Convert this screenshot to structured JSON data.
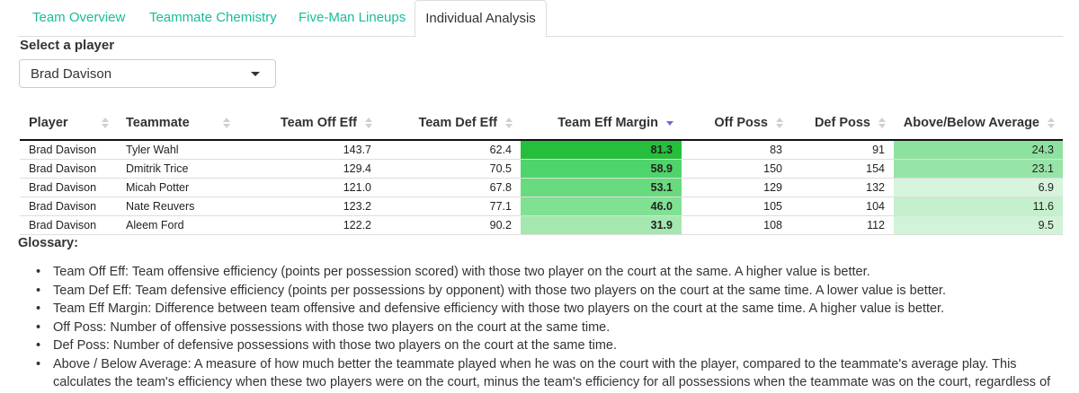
{
  "tabs": [
    {
      "label": "Team Overview",
      "active": false
    },
    {
      "label": "Teammate Chemistry",
      "active": false
    },
    {
      "label": "Five-Man Lineups",
      "active": false
    },
    {
      "label": "Individual Analysis",
      "active": true
    }
  ],
  "player_select": {
    "label": "Select a player",
    "value": "Brad Davison"
  },
  "table": {
    "columns": [
      "Player",
      "Teammate",
      "Team Off Eff",
      "Team Def Eff",
      "Team Eff Margin",
      "Off Poss",
      "Def Poss",
      "Above/Below Average"
    ],
    "sorted_by": "Team Eff Margin",
    "sort_direction": "descending",
    "rows": [
      {
        "player": "Brad Davison",
        "teammate": "Tyler Wahl",
        "off_eff": "143.7",
        "def_eff": "62.4",
        "margin": "81.3",
        "off_poss": "83",
        "def_poss": "91",
        "above_below": "24.3"
      },
      {
        "player": "Brad Davison",
        "teammate": "Dmitrik Trice",
        "off_eff": "129.4",
        "def_eff": "70.5",
        "margin": "58.9",
        "off_poss": "150",
        "def_poss": "154",
        "above_below": "23.1"
      },
      {
        "player": "Brad Davison",
        "teammate": "Micah Potter",
        "off_eff": "121.0",
        "def_eff": "67.8",
        "margin": "53.1",
        "off_poss": "129",
        "def_poss": "132",
        "above_below": "6.9"
      },
      {
        "player": "Brad Davison",
        "teammate": "Nate Reuvers",
        "off_eff": "123.2",
        "def_eff": "77.1",
        "margin": "46.0",
        "off_poss": "105",
        "def_poss": "104",
        "above_below": "11.6"
      },
      {
        "player": "Brad Davison",
        "teammate": "Aleem Ford",
        "off_eff": "122.2",
        "def_eff": "90.2",
        "margin": "31.9",
        "off_poss": "108",
        "def_poss": "112",
        "above_below": "9.5"
      }
    ],
    "colors": {
      "margin": [
        "#25bf3c",
        "#4fd46b",
        "#68db7e",
        "#80e193",
        "#a4e8b0"
      ],
      "above_below": [
        "#8ee2a0",
        "#98e4a8",
        "#d7f4dc",
        "#c5f0cd",
        "#d1f3d7"
      ],
      "sort_active": "#6e6ad8"
    }
  },
  "glossary": {
    "title": "Glossary:",
    "items": [
      "Team Off Eff: Team offensive efficiency (points per possession scored) with those two player on the court at the same. A higher value is better.",
      "Team Def Eff: Team defensive efficiency (points per possessions by opponent) with those two players on the court at the same time. A lower value is better.",
      "Team Eff Margin: Difference between team offensive and defensive efficiency with those two players on the court at the same time. A higher value is better.",
      "Off Poss: Number of offensive possessions with those two players on the court at the same time.",
      "Def Poss: Number of defensive possessions with those two players on the court at the same time.",
      "Above / Below Average: A measure of how much better the teammate played when he was on the court with the player, compared to the teammate's average play. This calculates the team's efficiency when these two players were on the court, minus the team's efficiency for all possessions when the teammate was on the court, regardless of who he played with."
    ]
  }
}
